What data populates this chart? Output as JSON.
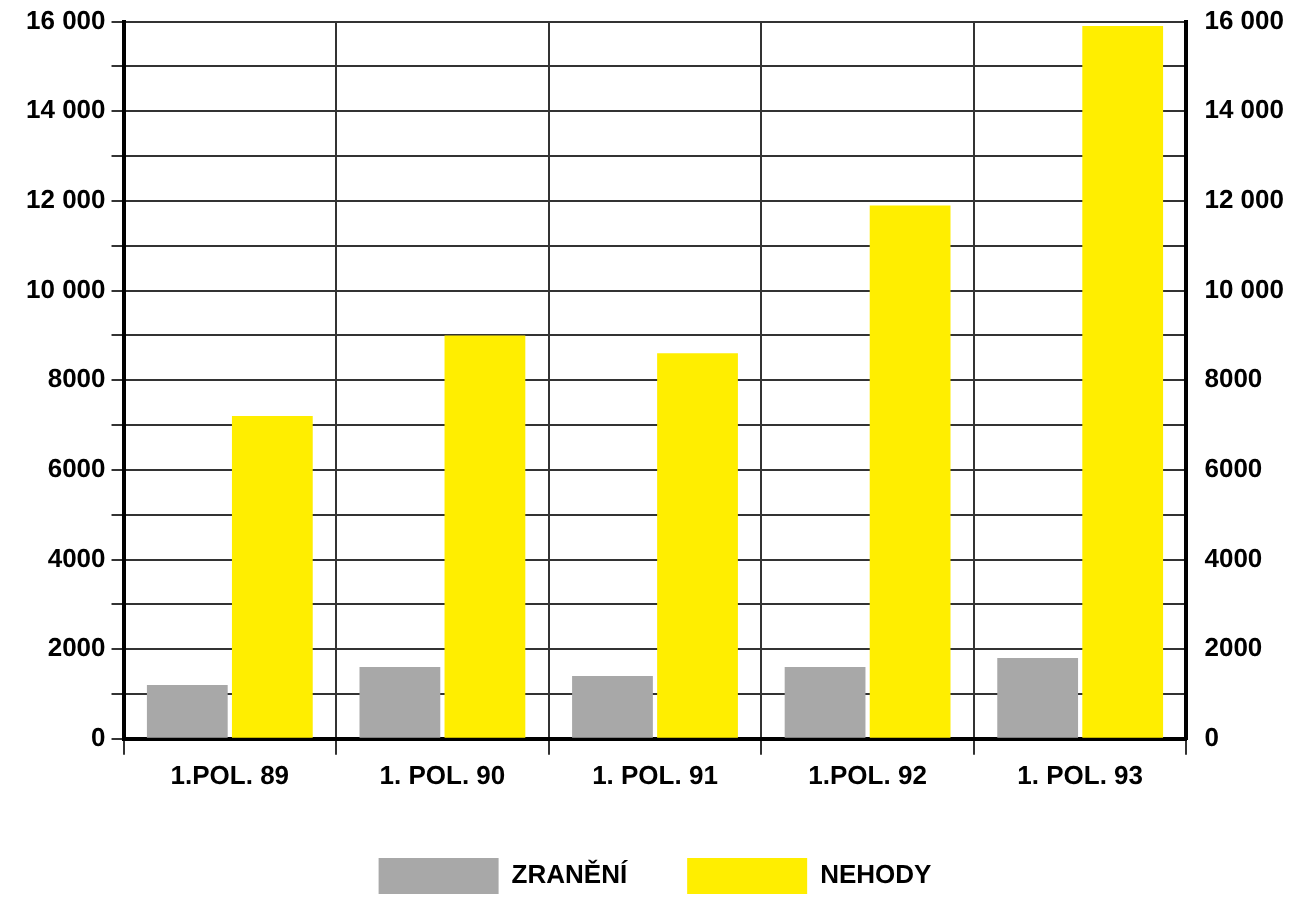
{
  "chart_data": {
    "type": "bar",
    "categories": [
      "1.POL. 89",
      "1. POL. 90",
      "1. POL. 91",
      "1.POL. 92",
      "1. POL. 93"
    ],
    "series": [
      {
        "name": "ZRANĚNÍ",
        "color": "#a8a8a8",
        "values": [
          1200,
          1600,
          1400,
          1600,
          1800
        ]
      },
      {
        "name": "NEHODY",
        "color": "#ffee00",
        "values": [
          7200,
          9000,
          8600,
          11900,
          15900
        ]
      }
    ],
    "ylim": [
      0,
      16000
    ],
    "yticks": [
      0,
      {
        "value": 1000,
        "label": null
      },
      2000,
      {
        "value": 3000,
        "label": null
      },
      4000,
      {
        "value": 5000,
        "label": null
      },
      6000,
      {
        "value": 7000,
        "label": null
      },
      8000,
      {
        "value": 9000,
        "label": null
      },
      {
        "value": 10000,
        "label": "10 000"
      },
      {
        "value": 11000,
        "label": null
      },
      {
        "value": 12000,
        "label": "12 000"
      },
      {
        "value": 13000,
        "label": null
      },
      {
        "value": 14000,
        "label": "14 000"
      },
      {
        "value": 15000,
        "label": null
      },
      {
        "value": 16000,
        "label": "16 000"
      }
    ],
    "y2lim": [
      0,
      16000
    ],
    "y2ticks": [
      0,
      {
        "value": 1000,
        "label": null
      },
      2000,
      {
        "value": 3000,
        "label": null
      },
      4000,
      {
        "value": 5000,
        "label": null
      },
      6000,
      {
        "value": 7000,
        "label": null
      },
      8000,
      {
        "value": 9000,
        "label": null
      },
      {
        "value": 10000,
        "label": "10 000"
      },
      {
        "value": 11000,
        "label": null
      },
      {
        "value": 12000,
        "label": "12 000"
      },
      {
        "value": 13000,
        "label": null
      },
      {
        "value": 14000,
        "label": "14 000"
      },
      {
        "value": 15000,
        "label": null
      },
      {
        "value": 16000,
        "label": "16 000"
      }
    ],
    "grid": true,
    "legend": "bottom"
  }
}
